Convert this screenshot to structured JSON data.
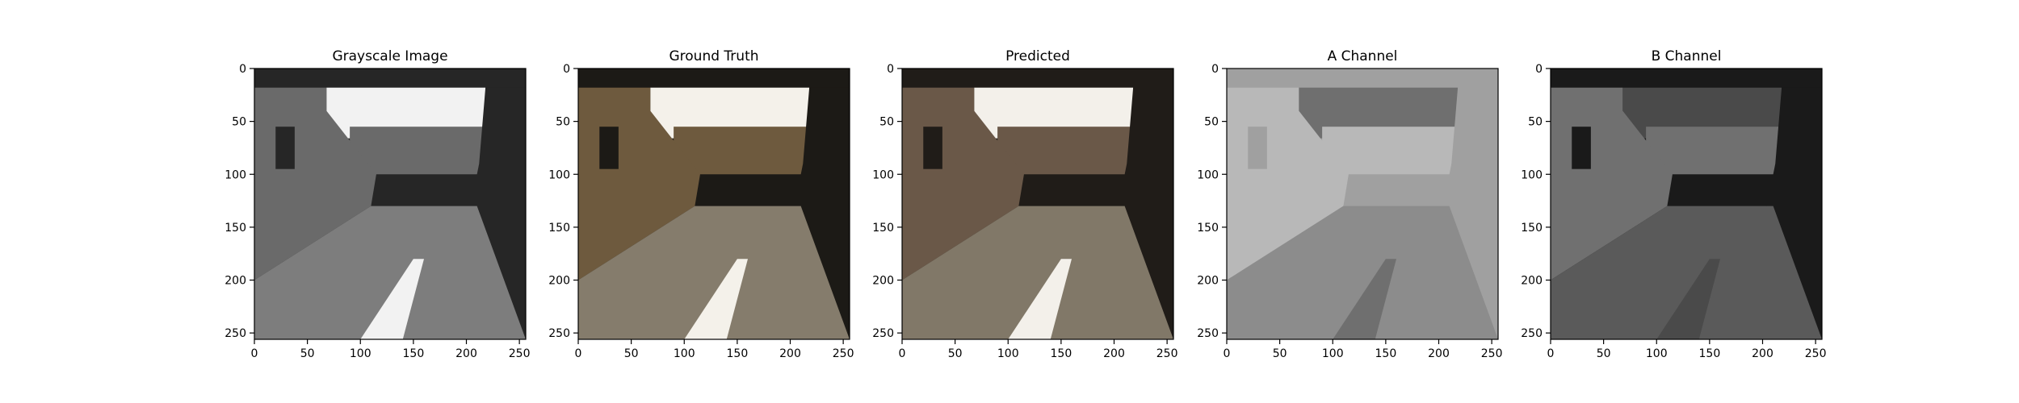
{
  "chart_data": [
    {
      "type": "image",
      "title": "Grayscale Image",
      "xticks": [
        "0",
        "50",
        "100",
        "150",
        "200",
        "250"
      ],
      "yticks": [
        "0",
        "50",
        "100",
        "150",
        "200",
        "250"
      ],
      "xlim": [
        0,
        256
      ],
      "ylim": [
        256,
        0
      ],
      "grid": false,
      "colors": {
        "sky": "#f2f2f2",
        "walls": "#6a6a6a",
        "road": "#7d7d7d",
        "shadow": "#262626"
      }
    },
    {
      "type": "image",
      "title": "Ground Truth",
      "xticks": [
        "0",
        "50",
        "100",
        "150",
        "200",
        "250"
      ],
      "yticks": [
        "0",
        "50",
        "100",
        "150",
        "200",
        "250"
      ],
      "xlim": [
        0,
        256
      ],
      "ylim": [
        256,
        0
      ],
      "grid": false,
      "colors": {
        "sky": "#f4f1ea",
        "walls": "#6e5a3e",
        "road": "#857c6c",
        "shadow": "#1c1a16"
      }
    },
    {
      "type": "image",
      "title": "Predicted",
      "xticks": [
        "0",
        "50",
        "100",
        "150",
        "200",
        "250"
      ],
      "yticks": [
        "0",
        "50",
        "100",
        "150",
        "200",
        "250"
      ],
      "xlim": [
        0,
        256
      ],
      "ylim": [
        256,
        0
      ],
      "grid": false,
      "colors": {
        "sky": "#f3f0ea",
        "walls": "#6a5848",
        "road": "#817868",
        "shadow": "#201c18"
      }
    },
    {
      "type": "image",
      "title": "A Channel",
      "xticks": [
        "0",
        "50",
        "100",
        "150",
        "200",
        "250"
      ],
      "yticks": [
        "0",
        "50",
        "100",
        "150",
        "200",
        "250"
      ],
      "xlim": [
        0,
        256
      ],
      "ylim": [
        256,
        0
      ],
      "grid": false,
      "colors": {
        "sky": "#6f6f6f",
        "walls": "#b8b8b8",
        "road": "#8c8c8c",
        "shadow": "#a0a0a0"
      }
    },
    {
      "type": "image",
      "title": "B Channel",
      "xticks": [
        "0",
        "50",
        "100",
        "150",
        "200",
        "250"
      ],
      "yticks": [
        "0",
        "50",
        "100",
        "150",
        "200",
        "250"
      ],
      "xlim": [
        0,
        256
      ],
      "ylim": [
        256,
        0
      ],
      "grid": false,
      "colors": {
        "sky": "#4a4a4a",
        "walls": "#707070",
        "road": "#5a5a5a",
        "shadow": "#1a1a1a"
      }
    }
  ]
}
